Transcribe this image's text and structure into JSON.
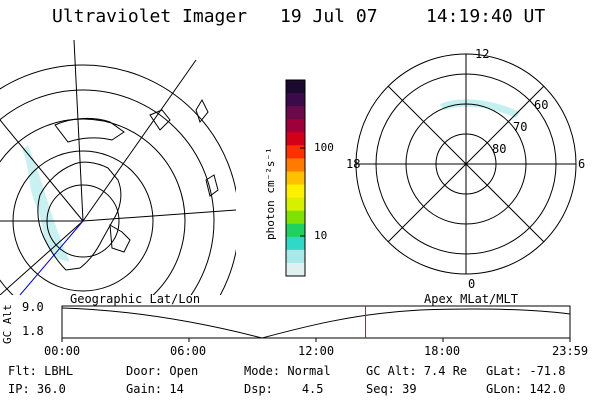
{
  "header": {
    "instrument": "Ultraviolet Imager",
    "date": "19 Jul 07",
    "time": "14:19:40 UT"
  },
  "colorbar": {
    "unit_label": "photon cm⁻²s⁻¹",
    "ticks": [
      "100",
      "10"
    ],
    "colors": [
      "#1a0a2e",
      "#3b0a4a",
      "#6a0a4a",
      "#a0003a",
      "#d4001a",
      "#ff3000",
      "#ff7a00",
      "#ffc000",
      "#fff000",
      "#d8f000",
      "#80e000",
      "#20d060",
      "#30d8c8",
      "#a8e8e8",
      "#e0f0f0"
    ]
  },
  "polar_plot": {
    "mlt_labels": [
      "12",
      "18",
      "6",
      "0"
    ],
    "lat_labels": [
      "60",
      "70",
      "80"
    ]
  },
  "timeline": {
    "left_title": "Geographic Lat/Lon",
    "right_title": "Apex MLat/MLT",
    "ylabel": "GC Alt",
    "y_ticks": [
      "9.0",
      "1.8"
    ],
    "x_ticks": [
      "00:00",
      "06:00",
      "12:00",
      "18:00",
      "23:59"
    ],
    "current_time_hours": 14.33,
    "marker_color": "#ff0000"
  },
  "info": {
    "row1": [
      {
        "label": "Flt:",
        "value": "LBHL"
      },
      {
        "label": "Door:",
        "value": "Open"
      },
      {
        "label": "Mode:",
        "value": "Normal"
      },
      {
        "label": "GC Alt:",
        "value": "7.4 Re"
      },
      {
        "label": "GLat:",
        "value": "-71.8"
      }
    ],
    "row2": [
      {
        "label": "IP:",
        "value": "36.0"
      },
      {
        "label": "Gain:",
        "value": "14"
      },
      {
        "label": "Dsp:",
        "value": "4.5"
      },
      {
        "label": "Seq:",
        "value": "39"
      },
      {
        "label": "GLon:",
        "value": "142.0"
      }
    ]
  }
}
